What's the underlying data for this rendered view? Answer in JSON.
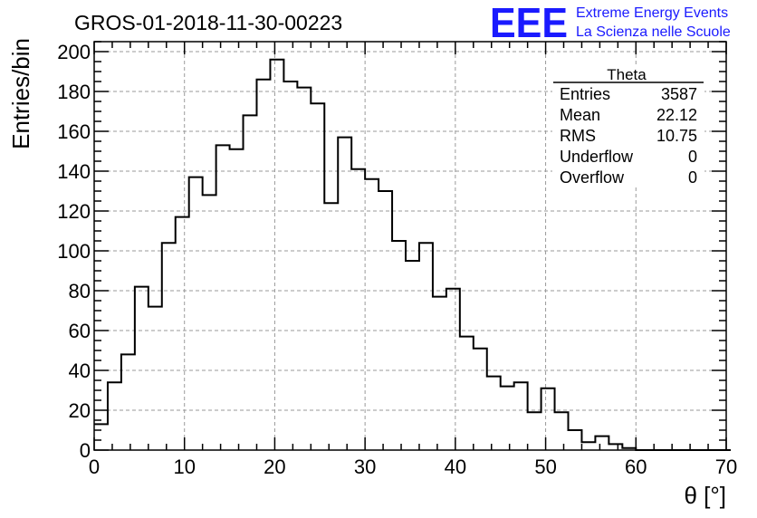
{
  "chart_data": {
    "type": "bar",
    "title": "GROS-01-2018-11-30-00223",
    "xlabel": "θ [°]",
    "ylabel": "Entries/bin",
    "xlim": [
      0,
      70
    ],
    "ylim": [
      0,
      205
    ],
    "bin_width": 1.5,
    "xticks": [
      0,
      10,
      20,
      30,
      40,
      50,
      60,
      70
    ],
    "yticks": [
      0,
      20,
      40,
      60,
      80,
      100,
      120,
      140,
      160,
      180,
      200
    ],
    "grid": true,
    "values": [
      13,
      34,
      48,
      82,
      72,
      104,
      117,
      137,
      128,
      153,
      151,
      168,
      186,
      196,
      185,
      182,
      174,
      124,
      157,
      141,
      136,
      130,
      105,
      95,
      104,
      77,
      81,
      57,
      51,
      37,
      32,
      34,
      19,
      31,
      19,
      10,
      4,
      7,
      3,
      1,
      0,
      0,
      0,
      0,
      0,
      0,
      0
    ]
  },
  "stats_box": {
    "title": "Theta",
    "rows": [
      {
        "label": "Entries",
        "value": "3587"
      },
      {
        "label": "Mean",
        "value": "22.12"
      },
      {
        "label": "RMS",
        "value": "10.75"
      },
      {
        "label": "Underflow",
        "value": "0"
      },
      {
        "label": "Overflow",
        "value": "0"
      }
    ]
  },
  "logo": {
    "mark": "EEE",
    "line1": "Extreme Energy Events",
    "line2": "La Scienza nelle Scuole",
    "color": "#1a1aff"
  },
  "colors": {
    "histogram": "#000000",
    "grid": "#9a9a9a",
    "logo": "#1a1aff"
  }
}
